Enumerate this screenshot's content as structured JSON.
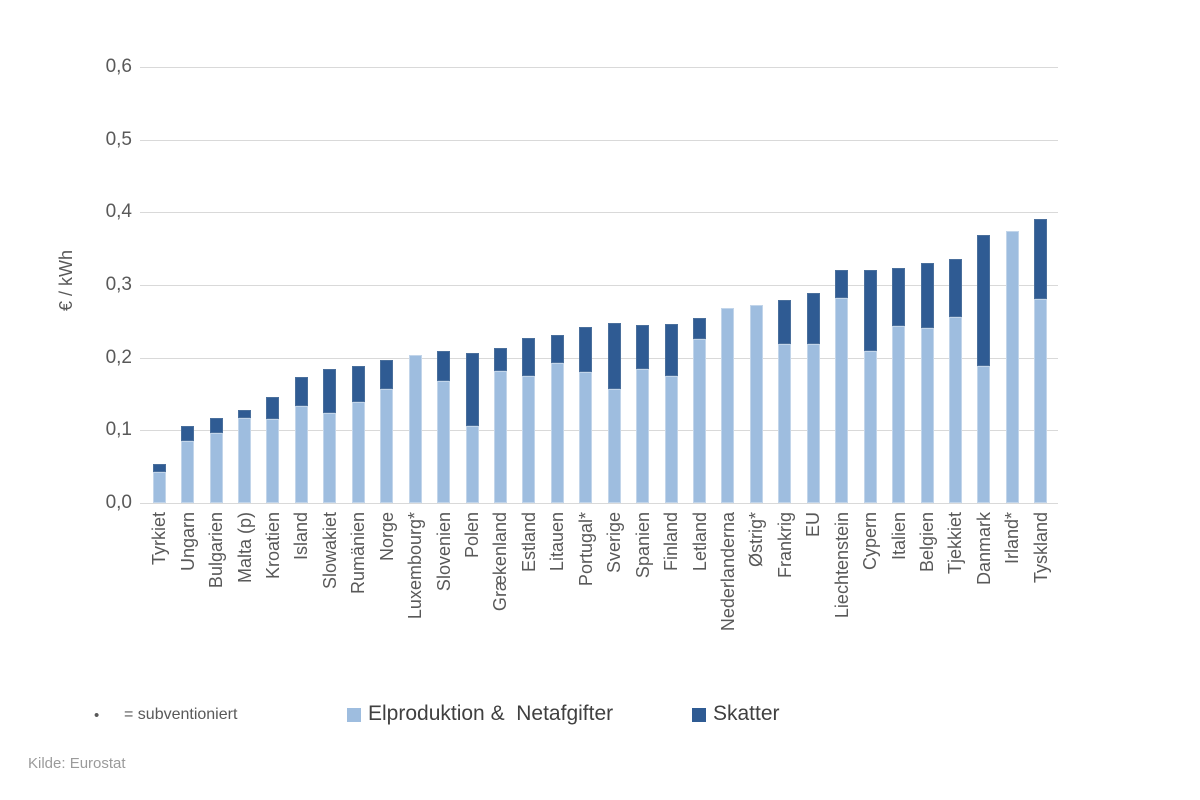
{
  "source": {
    "text": "Kilde: Eurostat"
  },
  "footnote": {
    "bullet": "•",
    "text": "=  subventioniert"
  },
  "colors": {
    "production_network": "#9ebddf",
    "taxes": "#2f5b93",
    "gridline": "#d9d9d9",
    "axis_text": "#595959",
    "legend_text": "#404040",
    "source_text": "#9b9b9b"
  },
  "chart_data": {
    "type": "bar",
    "stacked": true,
    "title": "",
    "xlabel": "",
    "ylabel": "€ / kWh",
    "ylim": [
      0,
      0.6
    ],
    "ytick_values": [
      0,
      0.1,
      0.2,
      0.3,
      0.4,
      0.5,
      0.6
    ],
    "ytick_labels": [
      "0,0",
      "0,1",
      "0,2",
      "0,3",
      "0,4",
      "0,5",
      "0,6"
    ],
    "grid": true,
    "legend_position": "bottom",
    "categories": [
      "Tyrkiet",
      "Ungarn",
      "Bulgarien",
      "Malta (p)",
      "Kroatien",
      "Island",
      "Slowakiet",
      "Rumänien",
      "Norge",
      "Luxembourg*",
      "Slovenien",
      "Polen",
      "Grækenland",
      "Estland",
      "Litauen",
      "Portugal*",
      "Sverige",
      "Spanien",
      "Finland",
      "Letland",
      "Nederlanderna",
      "Østrig*",
      "Frankrig",
      "EU",
      "Liechtenstein",
      "Cypern",
      "Italien",
      "Belgien",
      "Tjekkiet",
      "Danmark",
      "Irland*",
      "Tyskland"
    ],
    "series": [
      {
        "name": "Elproduktion &  Netafgifter",
        "color": "#9ebddf",
        "values": [
          0.042,
          0.086,
          0.097,
          0.117,
          0.116,
          0.133,
          0.124,
          0.139,
          0.157,
          0.203,
          0.168,
          0.106,
          0.182,
          0.175,
          0.192,
          0.18,
          0.157,
          0.185,
          0.176,
          0.226,
          0.269,
          0.273,
          0.219,
          0.219,
          0.281,
          0.21,
          0.244,
          0.24,
          0.256,
          0.189,
          0.374,
          0.281
        ]
      },
      {
        "name": "Skatter",
        "color": "#2f5b93",
        "values": [
          0.011,
          0.02,
          0.02,
          0.011,
          0.03,
          0.04,
          0.061,
          0.05,
          0.04,
          0.0,
          0.041,
          0.1,
          0.031,
          0.052,
          0.039,
          0.062,
          0.091,
          0.06,
          0.071,
          0.029,
          0.0,
          0.0,
          0.06,
          0.07,
          0.039,
          0.111,
          0.08,
          0.09,
          0.08,
          0.18,
          0.0,
          0.11
        ]
      }
    ]
  }
}
